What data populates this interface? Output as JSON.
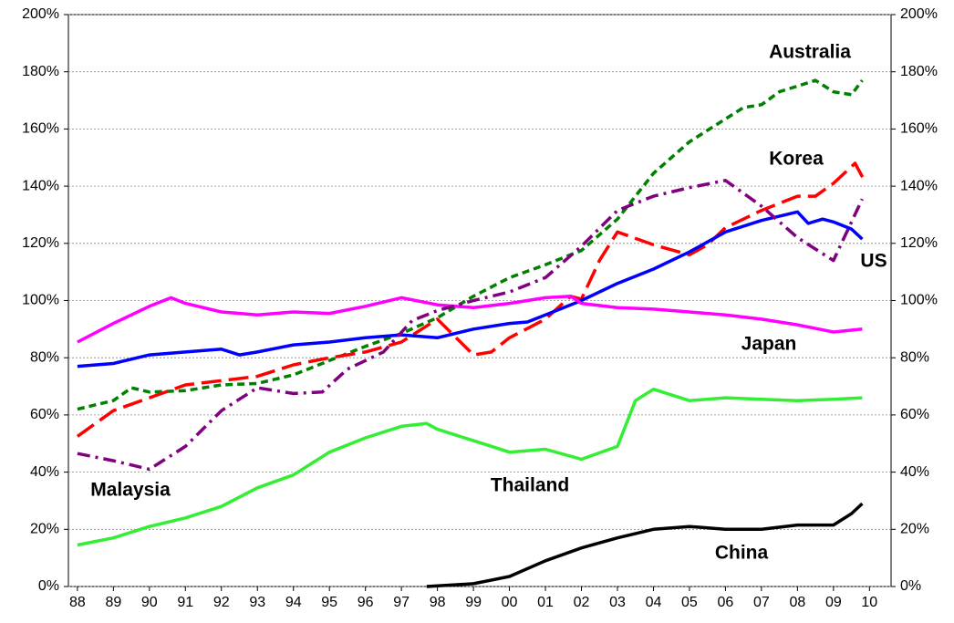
{
  "chart_data": {
    "type": "line",
    "xlim": [
      1987.75,
      2010.6
    ],
    "xticks": [
      {
        "value": 1988,
        "label": "88"
      },
      {
        "value": 1989,
        "label": "89"
      },
      {
        "value": 1990,
        "label": "90"
      },
      {
        "value": 1991,
        "label": "91"
      },
      {
        "value": 1992,
        "label": "92"
      },
      {
        "value": 1993,
        "label": "93"
      },
      {
        "value": 1994,
        "label": "94"
      },
      {
        "value": 1995,
        "label": "95"
      },
      {
        "value": 1996,
        "label": "96"
      },
      {
        "value": 1997,
        "label": "97"
      },
      {
        "value": 1998,
        "label": "98"
      },
      {
        "value": 1999,
        "label": "99"
      },
      {
        "value": 2000,
        "label": "00"
      },
      {
        "value": 2001,
        "label": "01"
      },
      {
        "value": 2002,
        "label": "02"
      },
      {
        "value": 2003,
        "label": "03"
      },
      {
        "value": 2004,
        "label": "04"
      },
      {
        "value": 2005,
        "label": "05"
      },
      {
        "value": 2006,
        "label": "06"
      },
      {
        "value": 2007,
        "label": "07"
      },
      {
        "value": 2008,
        "label": "08"
      },
      {
        "value": 2009,
        "label": "09"
      },
      {
        "value": 2010,
        "label": "10"
      }
    ],
    "ylim": [
      0,
      200
    ],
    "yticks": [
      {
        "value": 0,
        "label": "0%"
      },
      {
        "value": 20,
        "label": "20%"
      },
      {
        "value": 40,
        "label": "40%"
      },
      {
        "value": 60,
        "label": "60%"
      },
      {
        "value": 80,
        "label": "80%"
      },
      {
        "value": 100,
        "label": "100%"
      },
      {
        "value": 120,
        "label": "120%"
      },
      {
        "value": 140,
        "label": "140%"
      },
      {
        "value": 160,
        "label": "160%"
      },
      {
        "value": 180,
        "label": "180%"
      },
      {
        "value": 200,
        "label": "200%"
      }
    ],
    "y2lim": [
      0,
      200
    ],
    "y2ticks": [
      {
        "value": 0,
        "label": "0%"
      },
      {
        "value": 20,
        "label": "20%"
      },
      {
        "value": 40,
        "label": "40%"
      },
      {
        "value": 60,
        "label": "60%"
      },
      {
        "value": 80,
        "label": "80%"
      },
      {
        "value": 100,
        "label": "100%"
      },
      {
        "value": 120,
        "label": "120%"
      },
      {
        "value": 140,
        "label": "140%"
      },
      {
        "value": 160,
        "label": "160%"
      },
      {
        "value": 180,
        "label": "180%"
      },
      {
        "value": 200,
        "label": "200%"
      }
    ],
    "grid": true,
    "series": [
      {
        "name": "Australia",
        "color": "#008000",
        "dash": "8,5",
        "x": [
          1988,
          1989,
          1989.5,
          1990,
          1991,
          1992,
          1993,
          1994,
          1995,
          1996,
          1997,
          1998,
          1999,
          2000,
          2001,
          2002,
          2003,
          2004,
          2005,
          2006,
          2006.5,
          2007,
          2007.5,
          2008,
          2008.5,
          2009,
          2009.5,
          2009.8
        ],
        "values": [
          62,
          65,
          69.5,
          68,
          68.5,
          70.5,
          71,
          74,
          79,
          84,
          88.5,
          94,
          101.5,
          108,
          112.5,
          117.5,
          128.5,
          144.5,
          155.5,
          163.5,
          167.5,
          168.5,
          173,
          175,
          177,
          173,
          172,
          177
        ]
      },
      {
        "name": "Korea",
        "color": "#ff0000",
        "dash": "22,8",
        "x": [
          1988,
          1989,
          1990,
          1991,
          1992,
          1993,
          1994,
          1995,
          1996,
          1997,
          1998,
          1999,
          1999.5,
          2000,
          2001,
          2001.7,
          2002,
          2002.5,
          2003,
          2004,
          2005,
          2005.5,
          2006,
          2007,
          2008,
          2008.5,
          2009,
          2009.6,
          2009.9
        ],
        "values": [
          52.5,
          61.5,
          66,
          70.5,
          72,
          73.5,
          77.5,
          80,
          82,
          85.5,
          93.5,
          81,
          82,
          87,
          93.5,
          101.5,
          100.5,
          114,
          124,
          119.5,
          116,
          119.5,
          125.5,
          131.5,
          136.5,
          136.5,
          141,
          148,
          141
        ]
      },
      {
        "name": "US",
        "color": "#0000ff",
        "dash": "",
        "x": [
          1988,
          1989,
          1990,
          1991,
          1992,
          1992.5,
          1993,
          1994,
          1995,
          1996,
          1997,
          1998,
          1999,
          2000,
          2000.5,
          2001,
          2002,
          2003,
          2004,
          2005,
          2006,
          2007,
          2008,
          2008.3,
          2008.7,
          2009,
          2009.5,
          2009.8
        ],
        "values": [
          77,
          78,
          81,
          82,
          83,
          81,
          82,
          84.5,
          85.5,
          87,
          88,
          87,
          90,
          92,
          92.5,
          95,
          100,
          106,
          111,
          117,
          124,
          128,
          131,
          127,
          128.5,
          127.5,
          125,
          121.5
        ]
      },
      {
        "name": "Japan",
        "color": "#ff00ff",
        "dash": "",
        "x": [
          1988,
          1989,
          1990,
          1990.6,
          1991,
          1992,
          1993,
          1994,
          1995,
          1996,
          1997,
          1998,
          1999,
          2000,
          2001,
          2001.7,
          2002,
          2003,
          2004,
          2005,
          2006,
          2007,
          2008,
          2009,
          2009.8
        ],
        "values": [
          85.5,
          92,
          98,
          101,
          99,
          96,
          95,
          96,
          95.5,
          98,
          101,
          98.5,
          97.5,
          99,
          101,
          101.5,
          99,
          97.5,
          97,
          96,
          95,
          93.5,
          91.5,
          89,
          90
        ]
      },
      {
        "name": "Malaysia",
        "color": "#800080",
        "dash": "14,6,3,6",
        "x": [
          1988,
          1989,
          1990,
          1991,
          1992,
          1993,
          1994,
          1994.8,
          1995.5,
          1996.5,
          1997.3,
          1998,
          1999,
          2000,
          2001,
          2002,
          2003,
          2004,
          2005,
          2006,
          2007,
          2008,
          2009,
          2009.8
        ],
        "values": [
          46.5,
          44,
          41,
          49,
          61.5,
          69.5,
          67.5,
          68,
          76,
          82,
          93,
          96.5,
          100,
          103,
          108,
          119,
          131.5,
          136.5,
          139.5,
          142,
          133,
          122,
          114,
          135.5
        ]
      },
      {
        "name": "Thailand",
        "color": "#33ee33",
        "dash": "",
        "x": [
          1988,
          1989,
          1990,
          1991,
          1992,
          1993,
          1994,
          1995,
          1996,
          1997,
          1997.7,
          1998,
          1999,
          2000,
          2001,
          2002,
          2003,
          2003.5,
          2004,
          2005,
          2006,
          2007,
          2008,
          2009,
          2009.8
        ],
        "values": [
          14.5,
          17,
          21,
          24,
          28,
          34.5,
          39,
          47,
          52,
          56,
          57,
          55,
          51,
          47,
          48,
          44.5,
          49,
          65,
          69,
          65,
          66,
          65.5,
          65,
          65.5,
          66
        ]
      },
      {
        "name": "China",
        "color": "#000000",
        "dash": "",
        "x": [
          1997.7,
          1999,
          2000,
          2001,
          2002,
          2003,
          2004,
          2005,
          2006,
          2007,
          2008,
          2009,
          2009.5,
          2009.8
        ],
        "values": [
          0,
          1,
          3.5,
          9,
          13.5,
          17,
          20,
          21,
          20,
          20,
          21.5,
          21.5,
          25.5,
          29
        ]
      }
    ]
  }
}
